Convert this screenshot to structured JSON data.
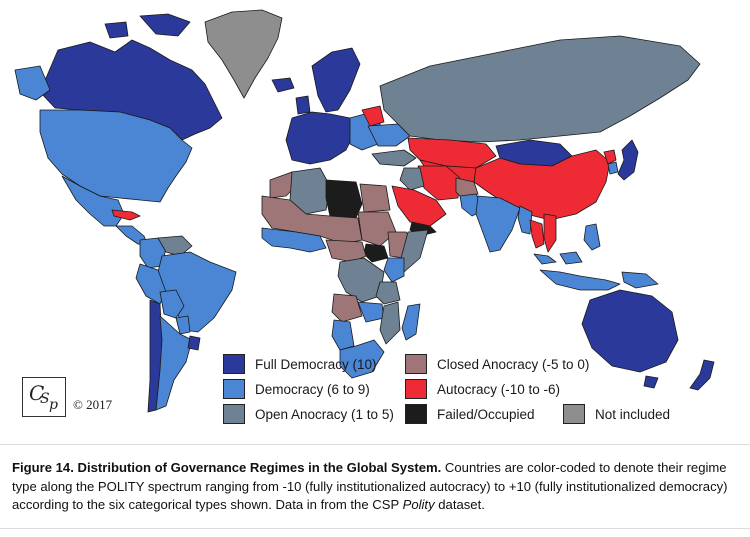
{
  "colors": {
    "full_democracy": "#2B3A9A",
    "democracy": "#4A86D4",
    "open_anocracy": "#6E8293",
    "closed_anocracy": "#9E7677",
    "autocracy": "#EE2B35",
    "failed_occupied": "#1C1C1C",
    "not_included": "#8E8E8E",
    "border": "#1a1a1a"
  },
  "legend": [
    {
      "label": "Full Democracy (10)",
      "color_key": "full_democracy"
    },
    {
      "label": "Closed Anocracy (-5 to 0)",
      "color_key": "closed_anocracy"
    },
    {
      "label": "Democracy (6 to 9)",
      "color_key": "democracy"
    },
    {
      "label": "Autocracy (-10 to -6)",
      "color_key": "autocracy"
    },
    {
      "label": "Open Anocracy (1 to 5)",
      "color_key": "open_anocracy"
    },
    {
      "label": "Failed/Occupied",
      "color_key": "failed_occupied"
    },
    {
      "label": "Not included",
      "color_key": "not_included"
    }
  ],
  "logo": {
    "text_c": "C",
    "text_s": "S",
    "text_p": "p"
  },
  "copyright": "© 2017",
  "caption": {
    "title": "Figure 14. Distribution of Governance Regimes in the Global System.",
    "body": " Countries are color-coded to denote their regime type along the POLITY spectrum ranging from -10 (fully institutionalized autocracy) to +10 (fully institutionalized democracy) according to the six categorical types shown. Data in from the CSP ",
    "italic": "Polity",
    "end": " dataset."
  },
  "regions": [
    {
      "name": "greenland",
      "category": "not_included"
    },
    {
      "name": "canada",
      "category": "full_democracy"
    },
    {
      "name": "usa",
      "category": "democracy"
    },
    {
      "name": "mexico",
      "category": "democracy"
    },
    {
      "name": "central-america",
      "category": "democracy"
    },
    {
      "name": "cuba",
      "category": "autocracy"
    },
    {
      "name": "colombia",
      "category": "democracy"
    },
    {
      "name": "venezuela",
      "category": "open_anocracy"
    },
    {
      "name": "brazil",
      "category": "democracy"
    },
    {
      "name": "peru",
      "category": "democracy"
    },
    {
      "name": "bolivia",
      "category": "democracy"
    },
    {
      "name": "paraguay",
      "category": "democracy"
    },
    {
      "name": "chile",
      "category": "full_democracy"
    },
    {
      "name": "argentina",
      "category": "democracy"
    },
    {
      "name": "uruguay",
      "category": "full_democracy"
    },
    {
      "name": "iceland",
      "category": "full_democracy"
    },
    {
      "name": "scandinavia",
      "category": "full_democracy"
    },
    {
      "name": "western-europe",
      "category": "full_democracy"
    },
    {
      "name": "eastern-europe",
      "category": "democracy"
    },
    {
      "name": "belarus",
      "category": "autocracy"
    },
    {
      "name": "ukraine",
      "category": "democracy"
    },
    {
      "name": "russia",
      "category": "open_anocracy"
    },
    {
      "name": "kazakhstan",
      "category": "autocracy"
    },
    {
      "name": "central-asia",
      "category": "autocracy"
    },
    {
      "name": "mongolia",
      "category": "full_democracy"
    },
    {
      "name": "china",
      "category": "autocracy"
    },
    {
      "name": "north-korea",
      "category": "autocracy"
    },
    {
      "name": "south-korea",
      "category": "democracy"
    },
    {
      "name": "japan",
      "category": "full_democracy"
    },
    {
      "name": "turkey",
      "category": "open_anocracy"
    },
    {
      "name": "iran",
      "category": "autocracy"
    },
    {
      "name": "iraq",
      "category": "open_anocracy"
    },
    {
      "name": "arabia",
      "category": "autocracy"
    },
    {
      "name": "yemen",
      "category": "failed_occupied"
    },
    {
      "name": "afghanistan",
      "category": "closed_anocracy"
    },
    {
      "name": "pakistan",
      "category": "democracy"
    },
    {
      "name": "india",
      "category": "democracy"
    },
    {
      "name": "myanmar",
      "category": "democracy"
    },
    {
      "name": "thailand",
      "category": "autocracy"
    },
    {
      "name": "vietnam",
      "category": "autocracy"
    },
    {
      "name": "malaysia",
      "category": "democracy"
    },
    {
      "name": "indonesia",
      "category": "democracy"
    },
    {
      "name": "philippines",
      "category": "democracy"
    },
    {
      "name": "png",
      "category": "democracy"
    },
    {
      "name": "australia",
      "category": "full_democracy"
    },
    {
      "name": "new-zealand",
      "category": "full_democracy"
    },
    {
      "name": "morocco",
      "category": "closed_anocracy"
    },
    {
      "name": "algeria",
      "category": "open_anocracy"
    },
    {
      "name": "libya",
      "category": "failed_occupied"
    },
    {
      "name": "egypt",
      "category": "closed_anocracy"
    },
    {
      "name": "sudan",
      "category": "closed_anocracy"
    },
    {
      "name": "south-sudan",
      "category": "failed_occupied"
    },
    {
      "name": "ethiopia",
      "category": "closed_anocracy"
    },
    {
      "name": "somalia",
      "category": "open_anocracy"
    },
    {
      "name": "kenya",
      "category": "democracy"
    },
    {
      "name": "sahel",
      "category": "closed_anocracy"
    },
    {
      "name": "west-africa",
      "category": "democracy"
    },
    {
      "name": "central-africa",
      "category": "closed_anocracy"
    },
    {
      "name": "drc",
      "category": "open_anocracy"
    },
    {
      "name": "angola",
      "category": "closed_anocracy"
    },
    {
      "name": "tanzania",
      "category": "open_anocracy"
    },
    {
      "name": "zambia",
      "category": "democracy"
    },
    {
      "name": "namibia",
      "category": "democracy"
    },
    {
      "name": "south-africa",
      "category": "democracy"
    },
    {
      "name": "madagascar",
      "category": "democracy"
    },
    {
      "name": "mozambique",
      "category": "open_anocracy"
    }
  ]
}
